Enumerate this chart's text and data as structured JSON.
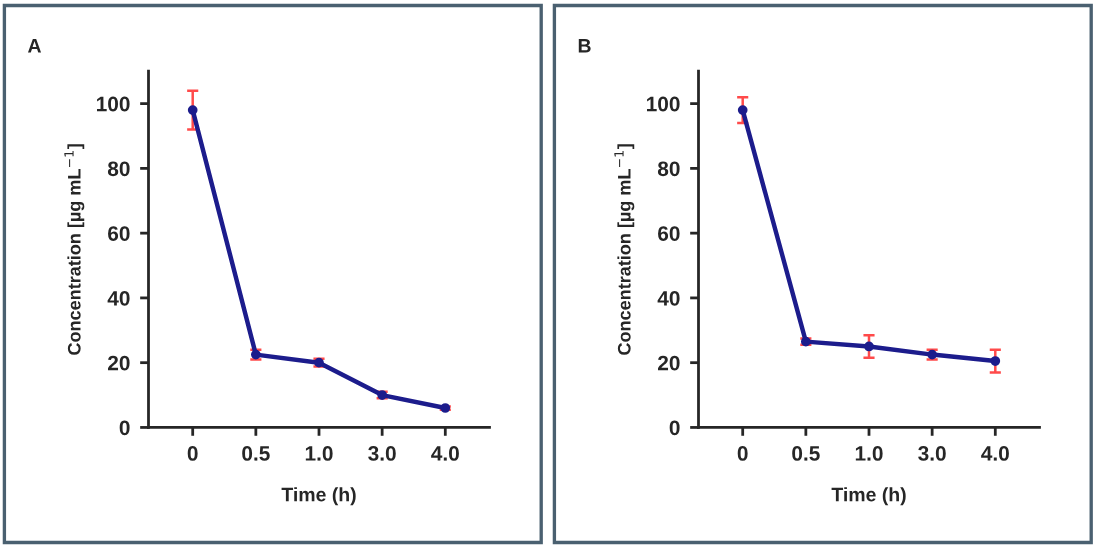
{
  "chart_data": [
    {
      "type": "line",
      "title": "A",
      "xlabel": "Time (h)",
      "ylabel": "Concentration [µg mL$^{−1}$]",
      "categories": [
        "0",
        "0.5",
        "1.0",
        "3.0",
        "4.0"
      ],
      "series": [
        {
          "color": "#1c1c8c",
          "values": [
            98,
            22.5,
            20,
            10,
            6
          ],
          "errors": [
            6,
            1.5,
            1.2,
            1,
            0.5
          ]
        }
      ],
      "ylim": [
        0,
        110
      ],
      "yticks": [
        0,
        20,
        40,
        60,
        80,
        100
      ],
      "marker": "circle",
      "line_style": "solid",
      "grid": false,
      "legend": false
    },
    {
      "type": "line",
      "title": "B",
      "xlabel": "Time (h)",
      "ylabel": "Concentration [µg mL$^{−1}$]",
      "categories": [
        "0",
        "0.5",
        "1.0",
        "3.0",
        "4.0"
      ],
      "series": [
        {
          "color": "#1c1c8c",
          "values": [
            98,
            26.5,
            25,
            22.5,
            20.5
          ],
          "errors": [
            4,
            1,
            3.5,
            1.5,
            3.5
          ]
        }
      ],
      "ylim": [
        0,
        110
      ],
      "yticks": [
        0,
        20,
        40,
        60,
        80,
        100
      ],
      "marker": "circle",
      "line_style": "solid",
      "grid": false,
      "legend": false
    }
  ]
}
